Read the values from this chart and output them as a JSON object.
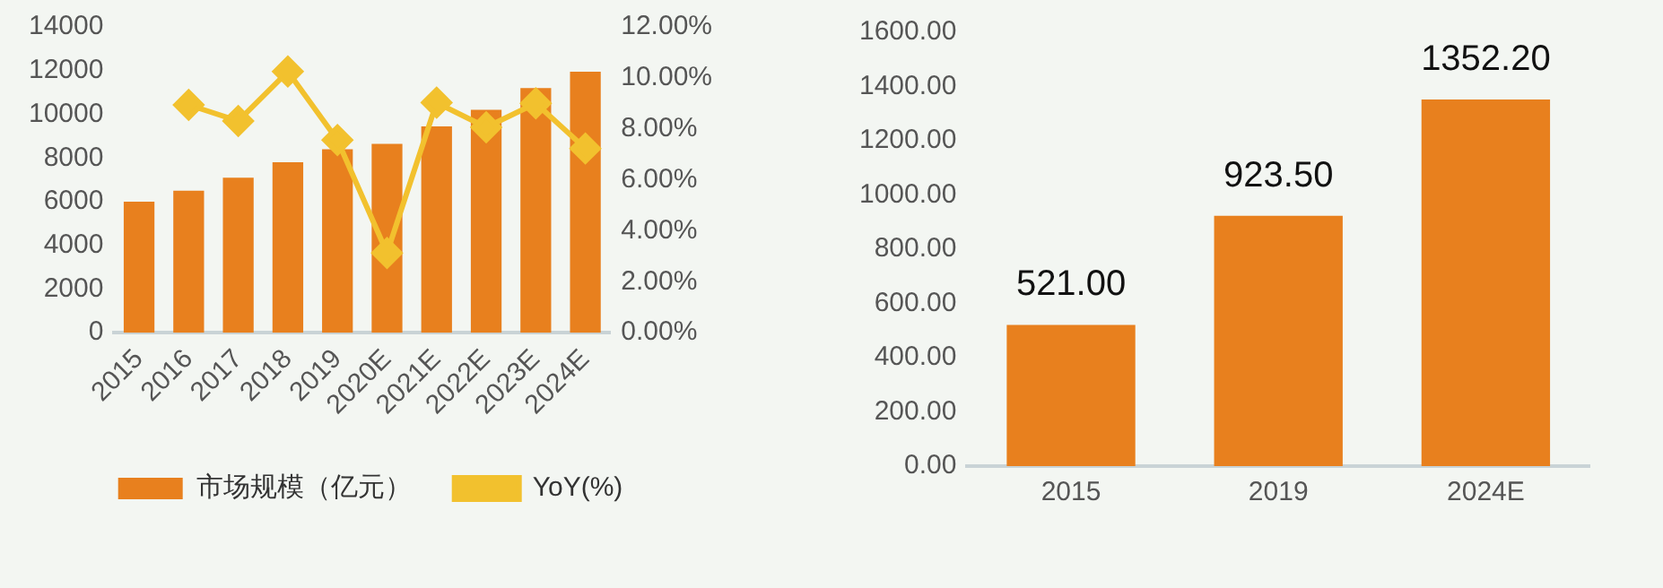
{
  "chart_data": [
    {
      "type": "bar",
      "categories": [
        "2015",
        "2016",
        "2017",
        "2018",
        "2019",
        "2020E",
        "2021E",
        "2022E",
        "2023E",
        "2024E"
      ],
      "series": [
        {
          "name": "市场规模（亿元）",
          "color": "#e8801e",
          "values": [
            6000,
            6500,
            7100,
            7800,
            8400,
            8650,
            9450,
            10200,
            11200,
            11950
          ]
        },
        {
          "name": "YoY(%)",
          "type": "line",
          "axis": "y2",
          "color": "#f2c12e",
          "values": [
            null,
            8.94,
            8.31,
            10.25,
            7.56,
            3.13,
            9.03,
            8.06,
            9.0,
            7.23
          ]
        }
      ],
      "ylim": [
        0,
        14000
      ],
      "yticks": [
        0,
        2000,
        4000,
        6000,
        8000,
        10000,
        12000,
        14000
      ],
      "y2lim": [
        0,
        12
      ],
      "y2ticks": [
        {
          "value": 0,
          "label": "0.00%"
        },
        {
          "value": 2,
          "label": "2.00%"
        },
        {
          "value": 4,
          "label": "4.00%"
        },
        {
          "value": 6,
          "label": "6.00%"
        },
        {
          "value": 8,
          "label": "8.00%"
        },
        {
          "value": 10,
          "label": "10.00%"
        },
        {
          "value": 12,
          "label": "12.00%"
        }
      ],
      "marker": "diamond",
      "legend": "bottom",
      "grid": false
    },
    {
      "type": "bar",
      "categories": [
        "2015",
        "2019",
        "2024E"
      ],
      "values": [
        521,
        923.5,
        1352.2
      ],
      "color": "#e8801e",
      "value_labels": [
        "521.00",
        "923.50",
        "1352.20"
      ],
      "ylim": [
        0,
        1600
      ],
      "yticks": [
        {
          "value": 0,
          "label": "0.00"
        },
        {
          "value": 200,
          "label": "200.00"
        },
        {
          "value": 400,
          "label": "400.00"
        },
        {
          "value": 600,
          "label": "600.00"
        },
        {
          "value": 800,
          "label": "800.00"
        },
        {
          "value": 1000,
          "label": "1000.00"
        },
        {
          "value": 1200,
          "label": "1200.00"
        },
        {
          "value": 1400,
          "label": "1400.00"
        },
        {
          "value": 1600,
          "label": "1600.00"
        }
      ],
      "grid": false
    }
  ]
}
